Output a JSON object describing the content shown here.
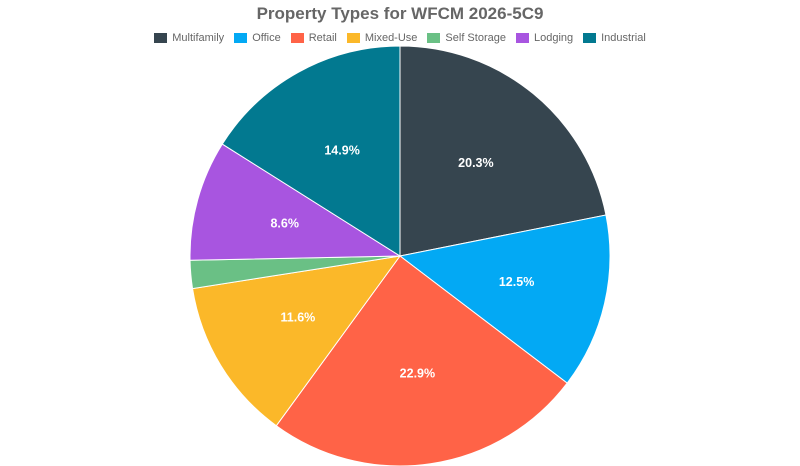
{
  "chart_data": {
    "type": "pie",
    "title": "Property Types for WFCM 2026-5C9",
    "legend_position": "top",
    "start_angle_deg": 0,
    "direction": "clockwise",
    "slices": [
      {
        "name": "Multifamily",
        "value": 20.3,
        "label": "20.3%",
        "color": "#36454f"
      },
      {
        "name": "Office",
        "value": 12.5,
        "label": "12.5%",
        "color": "#03a9f4"
      },
      {
        "name": "Retail",
        "value": 22.9,
        "label": "22.9%",
        "color": "#ff6347"
      },
      {
        "name": "Mixed-Use",
        "value": 11.6,
        "label": "11.6%",
        "color": "#fbb829"
      },
      {
        "name": "Self Storage",
        "value": 2.0,
        "label": "",
        "color": "#6ac085"
      },
      {
        "name": "Lodging",
        "value": 8.6,
        "label": "8.6%",
        "color": "#a855e0"
      },
      {
        "name": "Industrial",
        "value": 14.9,
        "label": "14.9%",
        "color": "#027990"
      }
    ]
  }
}
